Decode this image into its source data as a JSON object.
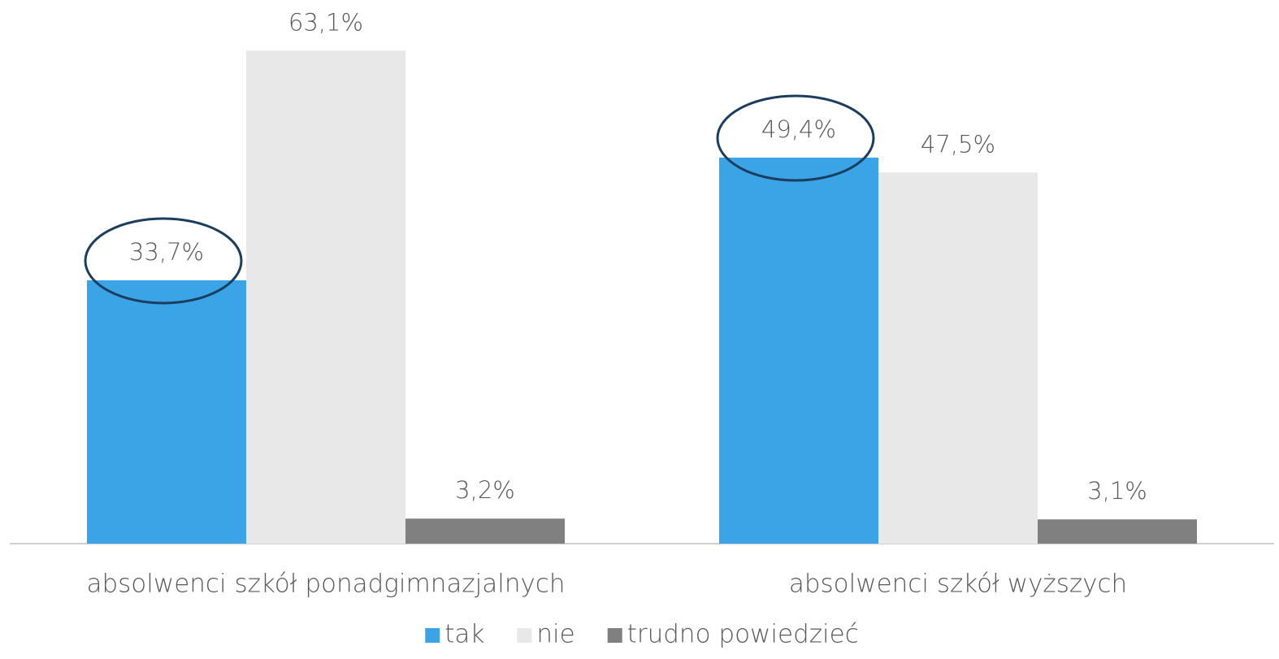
{
  "chart_data": {
    "type": "bar",
    "categories": [
      "absolwenci szkół ponadgimnazjalnych",
      "absolwenci szkół wyższych"
    ],
    "series": [
      {
        "name": "tak",
        "color": "#3ba4e6",
        "values": [
          33.7,
          49.4
        ],
        "value_labels": [
          "33,7%",
          "49,4%"
        ]
      },
      {
        "name": "nie",
        "color": "#e8e8e8",
        "values": [
          63.1,
          47.5
        ],
        "value_labels": [
          "63,1%",
          "47,5%"
        ]
      },
      {
        "name": "trudno powiedzieć",
        "color": "#808080",
        "values": [
          3.2,
          3.1
        ],
        "value_labels": [
          "3,2%",
          "3,1%"
        ]
      }
    ],
    "ylim": [
      0,
      65
    ],
    "grid": false,
    "legend": "bottom"
  }
}
